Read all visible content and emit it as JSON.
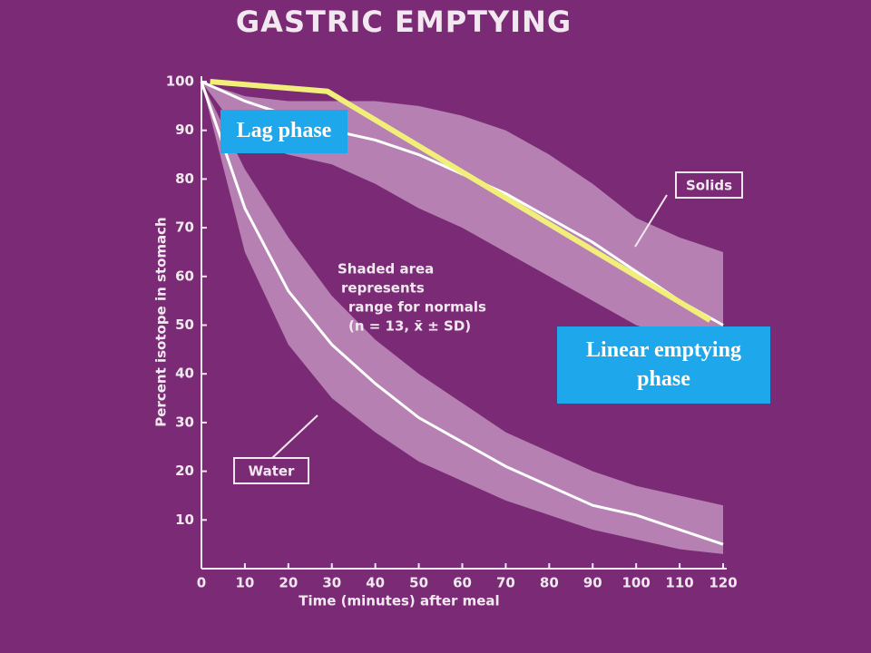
{
  "chart_data": {
    "type": "line",
    "title": "GASTRIC EMPTYING",
    "x_label": "Time (minutes) after meal",
    "y_label": "Percent isotope in stomach",
    "x": [
      0,
      10,
      20,
      30,
      40,
      50,
      60,
      70,
      80,
      90,
      100,
      110,
      120
    ],
    "xlim": [
      0,
      120
    ],
    "xticks": [
      0,
      10,
      20,
      30,
      40,
      50,
      60,
      70,
      80,
      90,
      100,
      110,
      120
    ],
    "ylim": [
      0,
      100
    ],
    "yticks": [
      10,
      20,
      30,
      40,
      50,
      60,
      70,
      80,
      90,
      100
    ],
    "series": [
      {
        "name": "Solids",
        "color": "#ffffff",
        "values": [
          100,
          96,
          93,
          90,
          88,
          85,
          81,
          77,
          72,
          67,
          61,
          55,
          50
        ],
        "band_upper": [
          100,
          97,
          96,
          96,
          96,
          95,
          93,
          90,
          85,
          79,
          72,
          68,
          65
        ],
        "band_lower": [
          100,
          88,
          85,
          83,
          79,
          74,
          70,
          65,
          60,
          55,
          50,
          47,
          45
        ]
      },
      {
        "name": "Water",
        "color": "#ffffff",
        "values": [
          100,
          74,
          57,
          46,
          38,
          31,
          26,
          21,
          17,
          13,
          11,
          8,
          5
        ],
        "band_upper": [
          100,
          82,
          68,
          56,
          47,
          40,
          34,
          28,
          24,
          20,
          17,
          15,
          13
        ],
        "band_lower": [
          100,
          65,
          46,
          35,
          28,
          22,
          18,
          14,
          11,
          8,
          6,
          4,
          3
        ]
      }
    ],
    "band_color": "#e8c8e4",
    "annotation_lines": [
      "Shaded area",
      "represents",
      "range for normals",
      "(n = 13, x̄ ± SD)"
    ],
    "overlay_line": {
      "color": "#f2ee7a",
      "x": [
        2,
        29,
        117
      ],
      "y": [
        100,
        98,
        51
      ]
    },
    "callouts": [
      "Lag phase",
      "Linear emptying phase"
    ]
  }
}
